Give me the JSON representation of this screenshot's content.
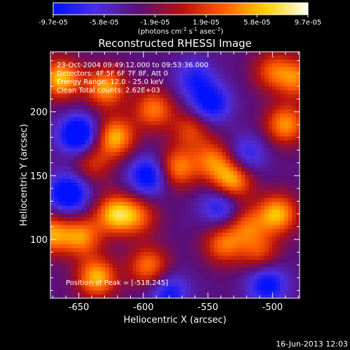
{
  "colorbar": {
    "tick_labels": [
      "-9.7e-05",
      "-5.8e-05",
      "-1.9e-05",
      "1.9e-05",
      "5.8e-05",
      "9.7e-05"
    ],
    "unit_prefix": "(photons cm",
    "unit_exp1": "-2",
    "unit_mid": " s",
    "unit_exp2": "-1",
    "unit_suffix": " asec",
    "unit_exp3": "-2",
    "unit_close": ")",
    "colors": [
      "#0011ff",
      "#4d2ee0",
      "#5b0f7a",
      "#b21010",
      "#ff5a00",
      "#ffd000",
      "#fffff2"
    ]
  },
  "chart_data": {
    "type": "heatmap",
    "title": "Reconstructed RHESSI Image",
    "xlabel": "Heliocentric X (arcsec)",
    "ylabel": "Heliocentric Y (arcsec)",
    "xlim": [
      -672,
      -479
    ],
    "ylim": [
      54,
      247
    ],
    "x_ticks": [
      -650,
      -600,
      -550,
      -500
    ],
    "y_ticks": [
      100,
      150,
      200
    ],
    "value_range": [
      -9.7e-05,
      9.7e-05
    ],
    "z_blobs": [
      {
        "x": -664,
        "y": 226,
        "v": 1.0
      },
      {
        "x": -629,
        "y": 219,
        "v": 0.9
      },
      {
        "x": -592,
        "y": 202,
        "v": 0.75
      },
      {
        "x": -622,
        "y": 180,
        "v": 0.95
      },
      {
        "x": -500,
        "y": 232,
        "v": 0.6
      },
      {
        "x": -490,
        "y": 190,
        "v": 0.85
      },
      {
        "x": -481,
        "y": 226,
        "v": 0.7
      },
      {
        "x": -563,
        "y": 186,
        "v": 0.55
      },
      {
        "x": -574,
        "y": 156,
        "v": 0.8
      },
      {
        "x": -546,
        "y": 162,
        "v": 0.7
      },
      {
        "x": -640,
        "y": 160,
        "v": 0.5
      },
      {
        "x": -531,
        "y": 146,
        "v": 0.95
      },
      {
        "x": -496,
        "y": 120,
        "v": 0.95
      },
      {
        "x": -520,
        "y": 111,
        "v": 0.6
      },
      {
        "x": -672,
        "y": 104,
        "v": 0.85
      },
      {
        "x": -622,
        "y": 120,
        "v": 0.95
      },
      {
        "x": -604,
        "y": 118,
        "v": 0.6
      },
      {
        "x": -648,
        "y": 102,
        "v": 0.8
      },
      {
        "x": -636,
        "y": 70,
        "v": 0.95
      },
      {
        "x": -596,
        "y": 79,
        "v": 0.75
      },
      {
        "x": -538,
        "y": 96,
        "v": 0.7
      },
      {
        "x": -510,
        "y": 90,
        "v": 0.55
      },
      {
        "x": -658,
        "y": 136,
        "v": -0.9
      },
      {
        "x": -650,
        "y": 182,
        "v": -1.0
      },
      {
        "x": -596,
        "y": 150,
        "v": -0.8
      },
      {
        "x": -548,
        "y": 206,
        "v": -0.7
      },
      {
        "x": -540,
        "y": 126,
        "v": -0.6
      },
      {
        "x": -504,
        "y": 65,
        "v": -0.7
      },
      {
        "x": -580,
        "y": 58,
        "v": -0.6
      },
      {
        "x": -560,
        "y": 226,
        "v": -0.5
      },
      {
        "x": -520,
        "y": 166,
        "v": -0.5
      }
    ],
    "annotations": {
      "time_range": "23-Oct-2004 09:49:12.000 to 09:53:36.000",
      "detectors": "Detectors: 4F 5F 6F 7F 8F, Att 0",
      "energy_range": "Energy Range: 12.0 - 25.0 keV",
      "clean": "Clean     Total counts: 2.62E+03",
      "peak": "Position of Peak = [-518,245]"
    }
  },
  "footer": {
    "timestamp": "16-Jun-2013 12:03"
  }
}
